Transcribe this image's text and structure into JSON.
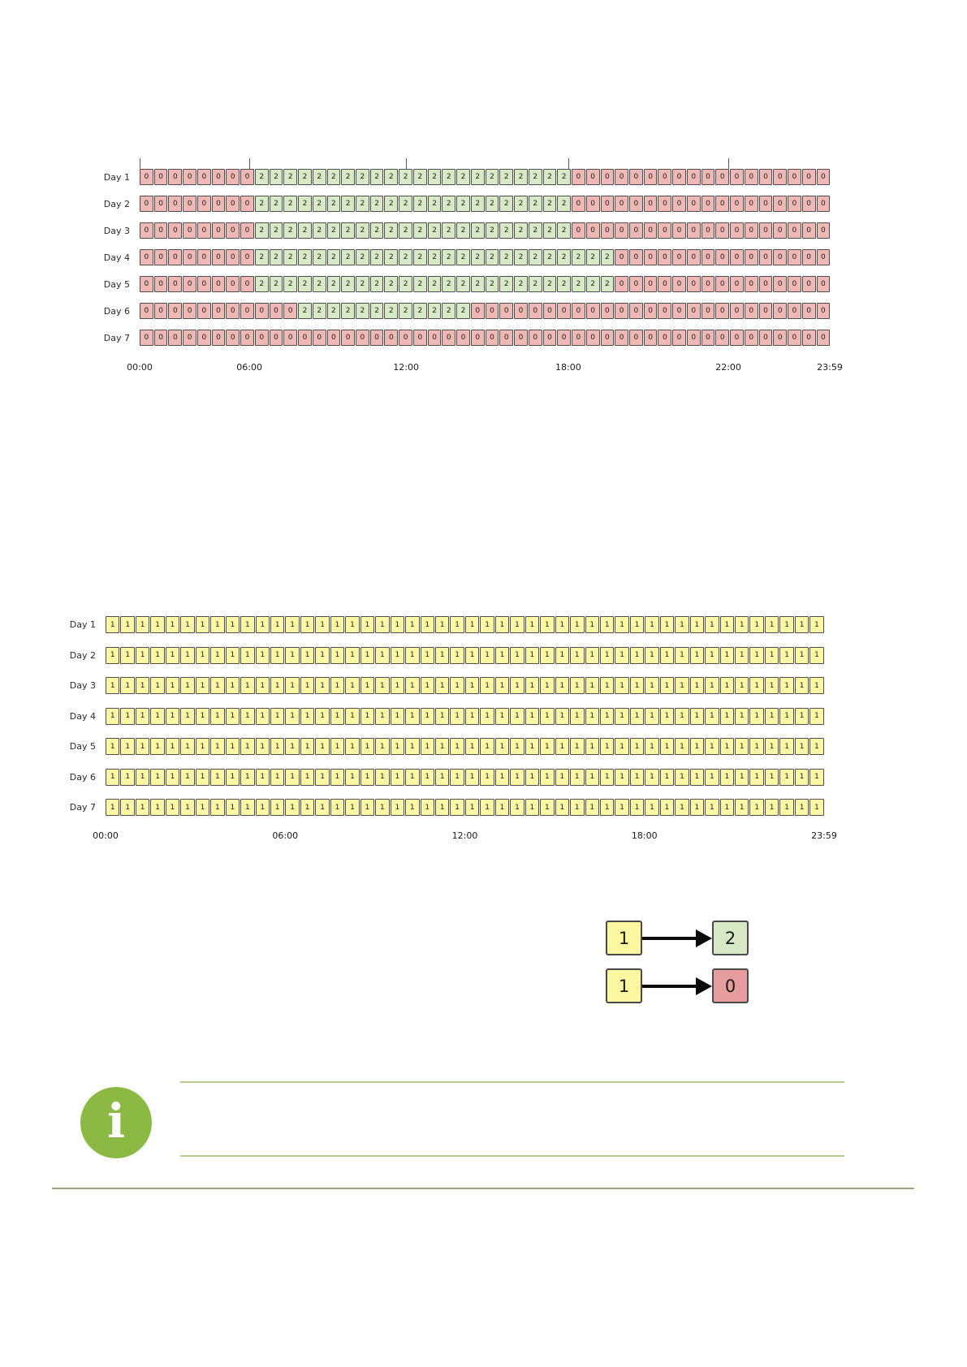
{
  "colors": {
    "cell_red": "#f0b8b4",
    "cell_green": "#d8e9c6",
    "cell_yellow": "#fcf7a5",
    "cell_border": "#4d4d4d",
    "legend_red": "#e69c9c",
    "legend_green": "#d6e8c4",
    "legend_yellow": "#fbf6a0",
    "info_green": "#8cb944",
    "rule_green": "#b9ca8f",
    "footer_rule": "#98a878"
  },
  "chart_data": [
    {
      "type": "heatmap",
      "name": "weekly-schedule-mapped",
      "description": "Weekly schedule grid, 48 slots per day, values 0 (red) and 2 (green)",
      "x_ticks": [
        {
          "label": "00:00",
          "pos": 0
        },
        {
          "label": "06:00",
          "pos": 0.159
        },
        {
          "label": "12:00",
          "pos": 0.386
        },
        {
          "label": "18:00",
          "pos": 0.621
        },
        {
          "label": "22:00",
          "pos": 0.853
        },
        {
          "label": "23:59",
          "pos": 1
        }
      ],
      "tick_marks": [
        0,
        0.159,
        0.386,
        0.621,
        0.853
      ],
      "value_colors": {
        "0": "red",
        "1": "yellow",
        "2": "green"
      },
      "rows": [
        {
          "label": "Day 1",
          "runs": [
            [
              "0",
              8
            ],
            [
              "2",
              22
            ],
            [
              "0",
              18
            ]
          ]
        },
        {
          "label": "Day 2",
          "runs": [
            [
              "0",
              8
            ],
            [
              "2",
              22
            ],
            [
              "0",
              18
            ]
          ]
        },
        {
          "label": "Day 3",
          "runs": [
            [
              "0",
              8
            ],
            [
              "2",
              22
            ],
            [
              "0",
              18
            ]
          ]
        },
        {
          "label": "Day 4",
          "runs": [
            [
              "0",
              8
            ],
            [
              "2",
              25
            ],
            [
              "0",
              15
            ]
          ]
        },
        {
          "label": "Day 5",
          "runs": [
            [
              "0",
              8
            ],
            [
              "2",
              25
            ],
            [
              "0",
              15
            ]
          ]
        },
        {
          "label": "Day 6",
          "runs": [
            [
              "0",
              11
            ],
            [
              "2",
              12
            ],
            [
              "0",
              25
            ]
          ]
        },
        {
          "label": "Day 7",
          "runs": [
            [
              "0",
              48
            ]
          ]
        }
      ]
    },
    {
      "type": "heatmap",
      "name": "weekly-schedule-base",
      "description": "Weekly schedule grid, 48 slots per day, all values 1 (yellow)",
      "x_ticks": [
        {
          "label": "00:00",
          "pos": 0
        },
        {
          "label": "06:00",
          "pos": 0.25
        },
        {
          "label": "12:00",
          "pos": 0.5
        },
        {
          "label": "18:00",
          "pos": 0.75
        },
        {
          "label": "23:59",
          "pos": 1
        }
      ],
      "tick_marks": [],
      "value_colors": {
        "0": "red",
        "1": "yellow",
        "2": "green"
      },
      "rows": [
        {
          "label": "Day 1",
          "runs": [
            [
              "1",
              48
            ]
          ]
        },
        {
          "label": "Day 2",
          "runs": [
            [
              "1",
              48
            ]
          ]
        },
        {
          "label": "Day 3",
          "runs": [
            [
              "1",
              48
            ]
          ]
        },
        {
          "label": "Day 4",
          "runs": [
            [
              "1",
              48
            ]
          ]
        },
        {
          "label": "Day 5",
          "runs": [
            [
              "1",
              48
            ]
          ]
        },
        {
          "label": "Day 6",
          "runs": [
            [
              "1",
              48
            ]
          ]
        },
        {
          "label": "Day 7",
          "runs": [
            [
              "1",
              48
            ]
          ]
        }
      ]
    }
  ],
  "legend": {
    "mappings": [
      {
        "from": "1",
        "from_color": "yellow",
        "to": "2",
        "to_color": "green"
      },
      {
        "from": "1",
        "from_color": "yellow",
        "to": "0",
        "to_color": "red"
      }
    ]
  },
  "info": {
    "glyph": "i"
  }
}
